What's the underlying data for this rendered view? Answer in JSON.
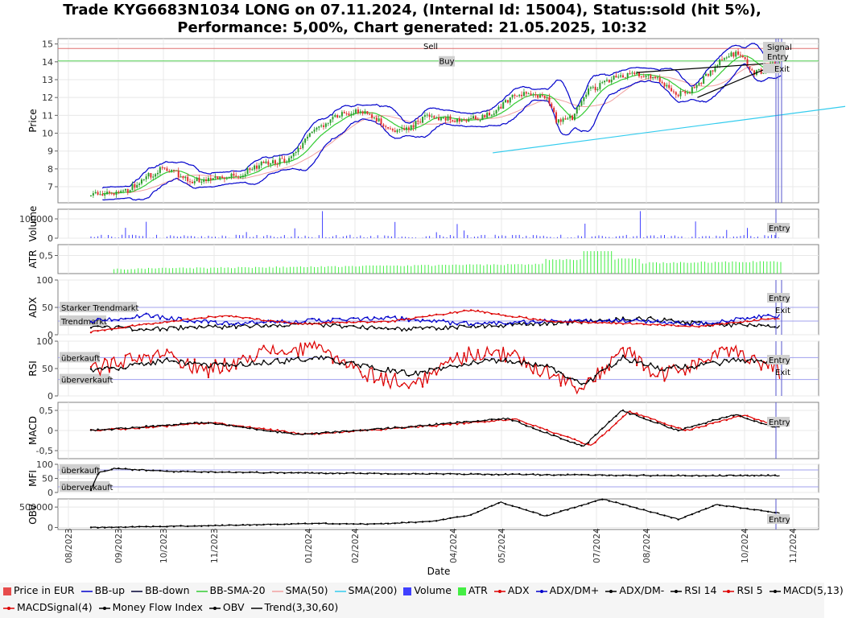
{
  "title": {
    "line1": "Trade KYG6683N1034 LONG on 07.11.2024, (Internal Id: 15004), Status:sold (hit 5%),",
    "line2": "Performance: 5,00%, Chart generated: 21.05.2025, 10:32"
  },
  "chart_data": {
    "type": "line",
    "x_axis": {
      "label": "Date",
      "tick_labels": [
        "08/2023",
        "09/2023",
        "10/2023",
        "11/2023",
        "01/2024",
        "02/2024",
        "04/2024",
        "05/2024",
        "07/2024",
        "08/2024",
        "10/2024",
        "11/2024"
      ]
    },
    "panels": [
      {
        "name": "price",
        "ylabel": "Price",
        "yticks": [
          7,
          8,
          9,
          10,
          11,
          12,
          13,
          14,
          15
        ],
        "ylim": [
          6.1,
          15.3
        ],
        "hlines": [
          {
            "label": "Sell",
            "value": 14.75,
            "color": "#e07070"
          },
          {
            "label": "Buy",
            "value": 14.05,
            "color": "#50d050"
          }
        ],
        "markers": [
          "Signal",
          "Entry",
          "Exit"
        ],
        "series_names": [
          "Price in EUR",
          "BB-up",
          "BB-down",
          "BB-SMA-20",
          "SMA(50)",
          "SMA(200)",
          "Trend(3,30,60)"
        ],
        "close_keypoints": [
          [
            0,
            6.6
          ],
          [
            0.04,
            6.7
          ],
          [
            0.09,
            6.7
          ],
          [
            0.14,
            7.5
          ],
          [
            0.19,
            8.0
          ],
          [
            0.23,
            7.7
          ],
          [
            0.27,
            7.3
          ],
          [
            0.34,
            7.6
          ],
          [
            0.39,
            7.6
          ],
          [
            0.45,
            8.3
          ],
          [
            0.52,
            8.5
          ],
          [
            0.58,
            9.9
          ],
          [
            0.64,
            10.9
          ],
          [
            0.7,
            11.3
          ],
          [
            0.75,
            10.9
          ],
          [
            0.79,
            10.2
          ],
          [
            0.84,
            10.3
          ],
          [
            0.88,
            10.9
          ],
          [
            0.92,
            10.9
          ],
          [
            0.97,
            10.7
          ],
          [
            1.04,
            10.9
          ],
          [
            1.12,
            12.1
          ],
          [
            1.16,
            12.2
          ],
          [
            1.2,
            12.1
          ],
          [
            1.23,
            10.6
          ],
          [
            1.27,
            10.9
          ],
          [
            1.31,
            12.3
          ],
          [
            1.37,
            13.0
          ],
          [
            1.43,
            13.4
          ],
          [
            1.49,
            13.1
          ],
          [
            1.54,
            12.2
          ],
          [
            1.58,
            12.3
          ],
          [
            1.62,
            13.1
          ],
          [
            1.66,
            14.0
          ],
          [
            1.71,
            14.6
          ],
          [
            1.75,
            13.3
          ],
          [
            1.82,
            14.05
          ]
        ],
        "sma200_segment": [
          [
            1.06,
            8.9
          ],
          [
            1.99,
            11.5
          ]
        ]
      },
      {
        "name": "volume",
        "ylabel": "Volume",
        "yticks": [
          0,
          100000
        ],
        "ylim": [
          0,
          150000
        ],
        "markers": [
          "Entry"
        ],
        "series_names": [
          "Volume"
        ]
      },
      {
        "name": "atr",
        "ylabel": "ATR",
        "yticks": [
          0.5
        ],
        "ylim": [
          0,
          0.8
        ],
        "series_names": [
          "ATR"
        ]
      },
      {
        "name": "adx",
        "ylabel": "ADX",
        "yticks": [
          0,
          50,
          100
        ],
        "ylim": [
          0,
          100
        ],
        "hlines": [
          {
            "label": "Starker Trendmarkt",
            "value": 50
          },
          {
            "label": "Trendmarkt",
            "value": 25
          }
        ],
        "markers": [
          "Entry",
          "Exit"
        ],
        "series_names": [
          "ADX",
          "ADX/DM+",
          "ADX/DM-"
        ],
        "adx_keypoints": [
          [
            0,
            5
          ],
          [
            0.15,
            20
          ],
          [
            0.35,
            35
          ],
          [
            0.55,
            20
          ],
          [
            0.8,
            25
          ],
          [
            1.0,
            45
          ],
          [
            1.2,
            25
          ],
          [
            1.45,
            20
          ],
          [
            1.6,
            15
          ],
          [
            1.8,
            30
          ]
        ],
        "dmplus_keypoints": [
          [
            0,
            25
          ],
          [
            0.15,
            35
          ],
          [
            0.35,
            20
          ],
          [
            0.55,
            25
          ],
          [
            0.8,
            30
          ],
          [
            1.0,
            20
          ],
          [
            1.2,
            25
          ],
          [
            1.45,
            25
          ],
          [
            1.6,
            20
          ],
          [
            1.8,
            35
          ]
        ],
        "dmminus_keypoints": [
          [
            0,
            15
          ],
          [
            0.15,
            10
          ],
          [
            0.35,
            15
          ],
          [
            0.55,
            20
          ],
          [
            0.8,
            10
          ],
          [
            1.0,
            15
          ],
          [
            1.2,
            20
          ],
          [
            1.45,
            30
          ],
          [
            1.6,
            20
          ],
          [
            1.8,
            15
          ]
        ]
      },
      {
        "name": "rsi",
        "ylabel": "RSI",
        "yticks": [
          0,
          50,
          100
        ],
        "ylim": [
          0,
          100
        ],
        "hlines": [
          {
            "label": "überkauft",
            "value": 70
          },
          {
            "label": "überverkauft",
            "value": 30
          }
        ],
        "markers": [
          "Entry",
          "Exit"
        ],
        "series_names": [
          "RSI 14",
          "RSI 5"
        ]
      },
      {
        "name": "macd",
        "ylabel": "MACD",
        "yticks": [
          -0.5,
          0,
          0.5
        ],
        "ylim": [
          -0.7,
          0.7
        ],
        "markers": [
          "Entry"
        ],
        "series_names": [
          "MACD(5,13)",
          "MACDSignal(4)"
        ],
        "macd_keypoints": [
          [
            0,
            0
          ],
          [
            0.3,
            0.2
          ],
          [
            0.55,
            -0.1
          ],
          [
            0.85,
            0.1
          ],
          [
            1.1,
            0.3
          ],
          [
            1.3,
            -0.4
          ],
          [
            1.4,
            0.5
          ],
          [
            1.55,
            0.0
          ],
          [
            1.7,
            0.4
          ],
          [
            1.8,
            0.1
          ]
        ]
      },
      {
        "name": "mfi",
        "ylabel": "MFI",
        "yticks": [
          0,
          50,
          100
        ],
        "ylim": [
          0,
          100
        ],
        "hlines": [
          {
            "label": "überkauft",
            "value": 80
          },
          {
            "label": "überverkauft",
            "value": 20
          }
        ],
        "series_names": [
          "Money Flow Index"
        ]
      },
      {
        "name": "obv",
        "ylabel": "OBV",
        "yticks": [
          0,
          500000
        ],
        "ylim": [
          -50000,
          700000
        ],
        "markers": [
          "Entry"
        ],
        "series_names": [
          "OBV"
        ],
        "obv_keypoints": [
          [
            0,
            0
          ],
          [
            0.3,
            40000
          ],
          [
            0.6,
            100000
          ],
          [
            0.75,
            80000
          ],
          [
            0.9,
            150000
          ],
          [
            1.0,
            300000
          ],
          [
            1.08,
            620000
          ],
          [
            1.2,
            280000
          ],
          [
            1.35,
            700000
          ],
          [
            1.55,
            200000
          ],
          [
            1.65,
            560000
          ],
          [
            1.82,
            350000
          ]
        ]
      }
    ]
  },
  "legend": {
    "row1": [
      {
        "label": "Price in EUR",
        "color": "#e74c4c",
        "kind": "box"
      },
      {
        "label": "BB-up",
        "color": "#0000cc",
        "kind": "line"
      },
      {
        "label": "BB-down",
        "color": "#000033",
        "kind": "line"
      },
      {
        "label": "BB-SMA-20",
        "color": "#33cc33",
        "kind": "line"
      },
      {
        "label": "SMA(50)",
        "color": "#f0a0a0",
        "kind": "line"
      },
      {
        "label": "SMA(200)",
        "color": "#33ccee",
        "kind": "line"
      },
      {
        "label": "Volume",
        "color": "#4040ff",
        "kind": "box"
      },
      {
        "label": "ATR",
        "color": "#44ee44",
        "kind": "box"
      },
      {
        "label": "ADX",
        "color": "#dd0000",
        "kind": "dotline"
      },
      {
        "label": "ADX/DM+",
        "color": "#0000cc",
        "kind": "dotline"
      },
      {
        "label": "ADX/DM-",
        "color": "#000000",
        "kind": "dotline"
      },
      {
        "label": "RSI 14",
        "color": "#000000",
        "kind": "dotline"
      },
      {
        "label": "RSI 5",
        "color": "#dd0000",
        "kind": "dotline"
      },
      {
        "label": "MACD(5,13)",
        "color": "#000000",
        "kind": "dotline"
      }
    ],
    "row2": [
      {
        "label": "MACDSignal(4)",
        "color": "#dd0000",
        "kind": "dotline"
      },
      {
        "label": "Money Flow Index",
        "color": "#000000",
        "kind": "dotline"
      },
      {
        "label": "OBV",
        "color": "#000000",
        "kind": "dotline"
      },
      {
        "label": "Trend(3,30,60)",
        "color": "#000000",
        "kind": "line"
      }
    ]
  }
}
